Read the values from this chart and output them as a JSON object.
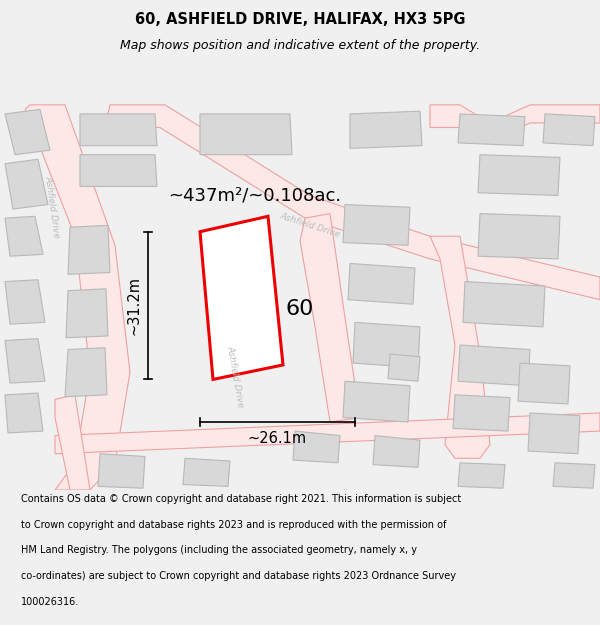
{
  "title": "60, ASHFIELD DRIVE, HALIFAX, HX3 5PG",
  "subtitle": "Map shows position and indicative extent of the property.",
  "footnote": "Contains OS data © Crown copyright and database right 2021. This information is subject to Crown copyright and database rights 2023 and is reproduced with the permission of HM Land Registry. The polygons (including the associated geometry, namely x, y co-ordinates) are subject to Crown copyright and database rights 2023 Ordnance Survey 100026316.",
  "area_label": "~437m²/~0.108ac.",
  "width_label": "~26.1m",
  "height_label": "~31.2m",
  "house_number": "60",
  "map_bg_color": "#ffffff",
  "fig_bg_color": "#f0f0f0",
  "road_line_color": "#f0a0a0",
  "road_fill_color": "#fde8e8",
  "building_fill": "#d8d8d8",
  "building_edge": "#b8b8b8",
  "highlight_color": "#ee0000",
  "road_label_color": "#aaaaaa",
  "title_fontsize": 10.5,
  "subtitle_fontsize": 9,
  "footnote_fontsize": 7,
  "label_fontsize": 13,
  "dim_fontsize": 10.5,
  "number_fontsize": 16
}
